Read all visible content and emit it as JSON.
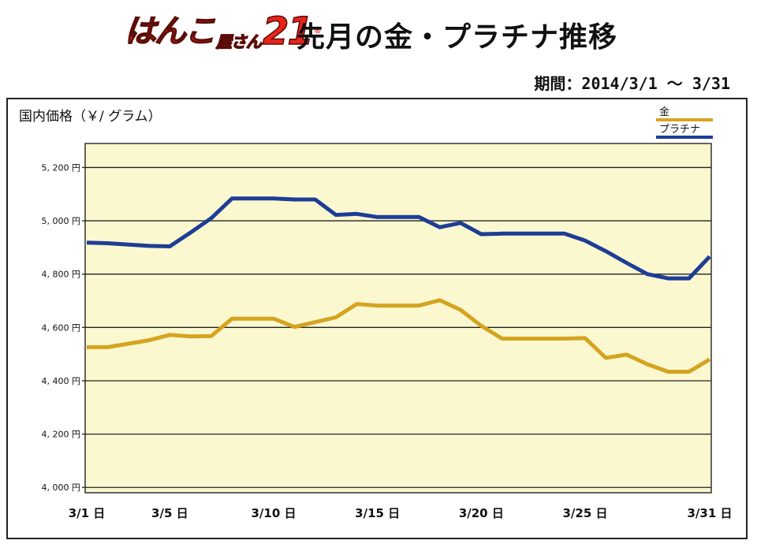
{
  "header": {
    "logo_main": "はんこ",
    "logo_small": "屋さん",
    "logo_num": "21",
    "logo_reg": "®",
    "title": "先月の金・プラチナ推移"
  },
  "period": "期間：2014/3/1 ～ 3/31",
  "chart_data": {
    "type": "line",
    "title": "先月の金・プラチナ推移",
    "ylabel": "国内価格（￥/ グラム）",
    "ylim": [
      3980,
      5290
    ],
    "grid": true,
    "legend_position": "top-right",
    "yticks": [
      4000,
      4200,
      4400,
      4600,
      4800,
      5000,
      5200
    ],
    "ytick_labels": [
      "4, 000 円",
      "4, 200 円",
      "4, 400 円",
      "4, 600 円",
      "4, 800 円",
      "5, 000 円",
      "5, 200 円"
    ],
    "xticks": [
      1,
      5,
      10,
      15,
      20,
      25,
      31
    ],
    "xtick_labels": [
      "3/1 日",
      "3/5 日",
      "3/10 日",
      "3/15 日",
      "3/20 日",
      "3/25 日",
      "3/31 日"
    ],
    "xlim": [
      1,
      31
    ],
    "colors": {
      "gold": "#d4a420",
      "platinum": "#1e3d96",
      "plot_bg": "#fbf8d0"
    },
    "series": [
      {
        "name": "金",
        "color": "#d4a420",
        "x": [
          1,
          2,
          4,
          5,
          6,
          7,
          8,
          9,
          10,
          11,
          12,
          13,
          14,
          15,
          16,
          17,
          18,
          19,
          20,
          21,
          22,
          23,
          24,
          25,
          26,
          27,
          28,
          29,
          30,
          31
        ],
        "values": [
          4526,
          4526,
          4552,
          4572,
          4566,
          4568,
          4633,
          4633,
          4633,
          4602,
          4620,
          4638,
          4688,
          4682,
          4682,
          4682,
          4702,
          4666,
          4606,
          4558,
          4558,
          4558,
          4558,
          4560,
          4486,
          4498,
          4462,
          4434,
          4434,
          4480
        ]
      },
      {
        "name": "プラチナ",
        "color": "#1e3d96",
        "x": [
          1,
          2,
          4,
          5,
          6,
          7,
          8,
          9,
          10,
          11,
          12,
          13,
          14,
          15,
          16,
          17,
          18,
          19,
          20,
          21,
          22,
          23,
          24,
          25,
          26,
          27,
          28,
          29,
          30,
          31
        ],
        "values": [
          4918,
          4916,
          4906,
          4904,
          4956,
          5010,
          5084,
          5084,
          5084,
          5080,
          5080,
          5022,
          5026,
          5014,
          5014,
          5014,
          4976,
          4992,
          4950,
          4952,
          4952,
          4952,
          4952,
          4926,
          4886,
          4842,
          4800,
          4784,
          4784,
          4866
        ]
      }
    ]
  }
}
